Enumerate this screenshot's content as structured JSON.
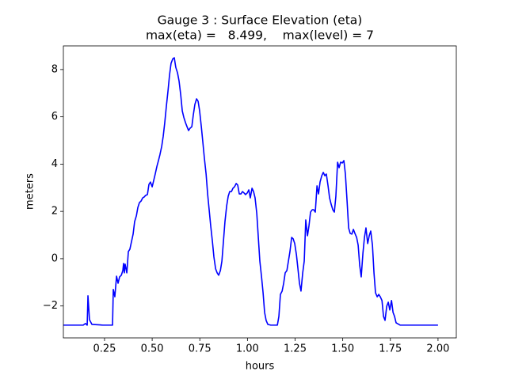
{
  "chart_data": {
    "type": "line",
    "title": "Gauge 3 : Surface Elevation (eta)",
    "subtitle": "max(eta) =   8.499,    max(level) = 7",
    "x_label": "hours",
    "y_label": "meters",
    "xlim": [
      0.034,
      2.096
    ],
    "ylim": [
      -3.35,
      9.0
    ],
    "xticks": [
      0.25,
      {
        "value": 0.5,
        "label": "0.50"
      },
      0.75,
      {
        "value": 1,
        "label": "1.00"
      },
      1.25,
      {
        "value": 1.5,
        "label": "1.50"
      },
      1.75,
      {
        "value": 2,
        "label": "2.00"
      }
    ],
    "yticks": [
      {
        "value": -2,
        "label": "−2"
      },
      0,
      2,
      4,
      6,
      8
    ],
    "series": [
      {
        "color": "#0000ff",
        "x": [
          0.034,
          0.138,
          0.15,
          0.159,
          0.163,
          0.171,
          0.184,
          0.242,
          0.292,
          0.296,
          0.304,
          0.313,
          0.321,
          0.329,
          0.338,
          0.346,
          0.35,
          0.354,
          0.358,
          0.367,
          0.375,
          0.383,
          0.392,
          0.4,
          0.408,
          0.417,
          0.425,
          0.433,
          0.442,
          0.45,
          0.458,
          0.466,
          0.475,
          0.483,
          0.491,
          0.5,
          0.508,
          0.516,
          0.525,
          0.533,
          0.541,
          0.55,
          0.558,
          0.566,
          0.575,
          0.583,
          0.591,
          0.599,
          0.608,
          0.616,
          0.624,
          0.633,
          0.641,
          0.65,
          0.658,
          0.666,
          0.675,
          0.683,
          0.691,
          0.699,
          0.708,
          0.716,
          0.724,
          0.733,
          0.741,
          0.749,
          0.758,
          0.766,
          0.774,
          0.783,
          0.791,
          0.799,
          0.807,
          0.816,
          0.824,
          0.833,
          0.841,
          0.849,
          0.858,
          0.866,
          0.874,
          0.882,
          0.891,
          0.899,
          0.907,
          0.916,
          0.924,
          0.932,
          0.941,
          0.949,
          0.957,
          0.966,
          0.974,
          0.982,
          0.99,
          0.999,
          1.007,
          1.015,
          1.024,
          1.032,
          1.04,
          1.049,
          1.057,
          1.065,
          1.074,
          1.082,
          1.09,
          1.098,
          1.107,
          1.123,
          1.157,
          1.165,
          1.173,
          1.182,
          1.19,
          1.198,
          1.207,
          1.215,
          1.223,
          1.232,
          1.24,
          1.248,
          1.257,
          1.265,
          1.273,
          1.281,
          1.29,
          1.298,
          1.306,
          1.315,
          1.323,
          1.331,
          1.34,
          1.348,
          1.356,
          1.365,
          1.373,
          1.381,
          1.39,
          1.398,
          1.406,
          1.414,
          1.423,
          1.431,
          1.439,
          1.448,
          1.456,
          1.464,
          1.473,
          1.481,
          1.489,
          1.498,
          1.506,
          1.514,
          1.523,
          1.531,
          1.539,
          1.548,
          1.556,
          1.564,
          1.573,
          1.581,
          1.589,
          1.597,
          1.606,
          1.614,
          1.622,
          1.631,
          1.639,
          1.647,
          1.656,
          1.664,
          1.672,
          1.681,
          1.689,
          1.697,
          1.706,
          1.714,
          1.722,
          1.731,
          1.739,
          1.747,
          1.756,
          1.764,
          1.772,
          1.78,
          1.801,
          2.0
        ],
        "values": [
          -2.81,
          -2.81,
          -2.74,
          -2.81,
          -1.57,
          -2.58,
          -2.78,
          -2.81,
          -2.81,
          -1.3,
          -1.61,
          -0.74,
          -1.04,
          -0.77,
          -0.7,
          -0.5,
          -0.2,
          -0.6,
          -0.23,
          -0.6,
          0.3,
          0.4,
          0.74,
          1.04,
          1.57,
          1.81,
          2.17,
          2.37,
          2.44,
          2.57,
          2.61,
          2.68,
          2.71,
          3.14,
          3.24,
          3.04,
          3.31,
          3.58,
          3.91,
          4.15,
          4.41,
          4.75,
          5.18,
          5.75,
          6.49,
          7.09,
          7.76,
          8.26,
          8.45,
          8.499,
          8.09,
          7.86,
          7.52,
          6.92,
          6.25,
          5.98,
          5.75,
          5.58,
          5.42,
          5.52,
          5.58,
          6.09,
          6.52,
          6.76,
          6.66,
          6.25,
          5.58,
          4.92,
          4.25,
          3.58,
          2.74,
          2.07,
          1.4,
          0.74,
          0.07,
          -0.43,
          -0.6,
          -0.7,
          -0.5,
          -0.1,
          0.74,
          1.57,
          2.24,
          2.64,
          2.84,
          2.84,
          2.98,
          3.04,
          3.18,
          3.11,
          2.74,
          2.74,
          2.84,
          2.78,
          2.71,
          2.78,
          2.91,
          2.57,
          2.98,
          2.84,
          2.57,
          1.91,
          0.9,
          -0.1,
          -0.77,
          -1.44,
          -2.27,
          -2.61,
          -2.78,
          -2.81,
          -2.81,
          -2.44,
          -1.51,
          -1.37,
          -1.04,
          -0.6,
          -0.5,
          -0.1,
          0.3,
          0.9,
          0.84,
          0.64,
          0.17,
          -0.43,
          -1.04,
          -1.37,
          -0.6,
          -0.1,
          1.64,
          0.97,
          1.4,
          1.97,
          2.07,
          2.07,
          1.97,
          3.08,
          2.74,
          3.24,
          3.51,
          3.65,
          3.51,
          3.58,
          3.08,
          2.57,
          2.31,
          2.07,
          1.97,
          2.64,
          4.08,
          3.85,
          4.08,
          4.05,
          4.15,
          3.58,
          2.41,
          1.3,
          1.07,
          1.04,
          1.24,
          1.07,
          0.9,
          0.57,
          -0.27,
          -0.77,
          0.23,
          0.9,
          1.3,
          0.64,
          0.97,
          1.17,
          0.57,
          -0.6,
          -1.44,
          -1.61,
          -1.51,
          -1.61,
          -1.77,
          -2.44,
          -2.61,
          -2.01,
          -1.84,
          -2.17,
          -1.77,
          -2.27,
          -2.44,
          -2.71,
          -2.81,
          -2.81
        ]
      }
    ]
  }
}
